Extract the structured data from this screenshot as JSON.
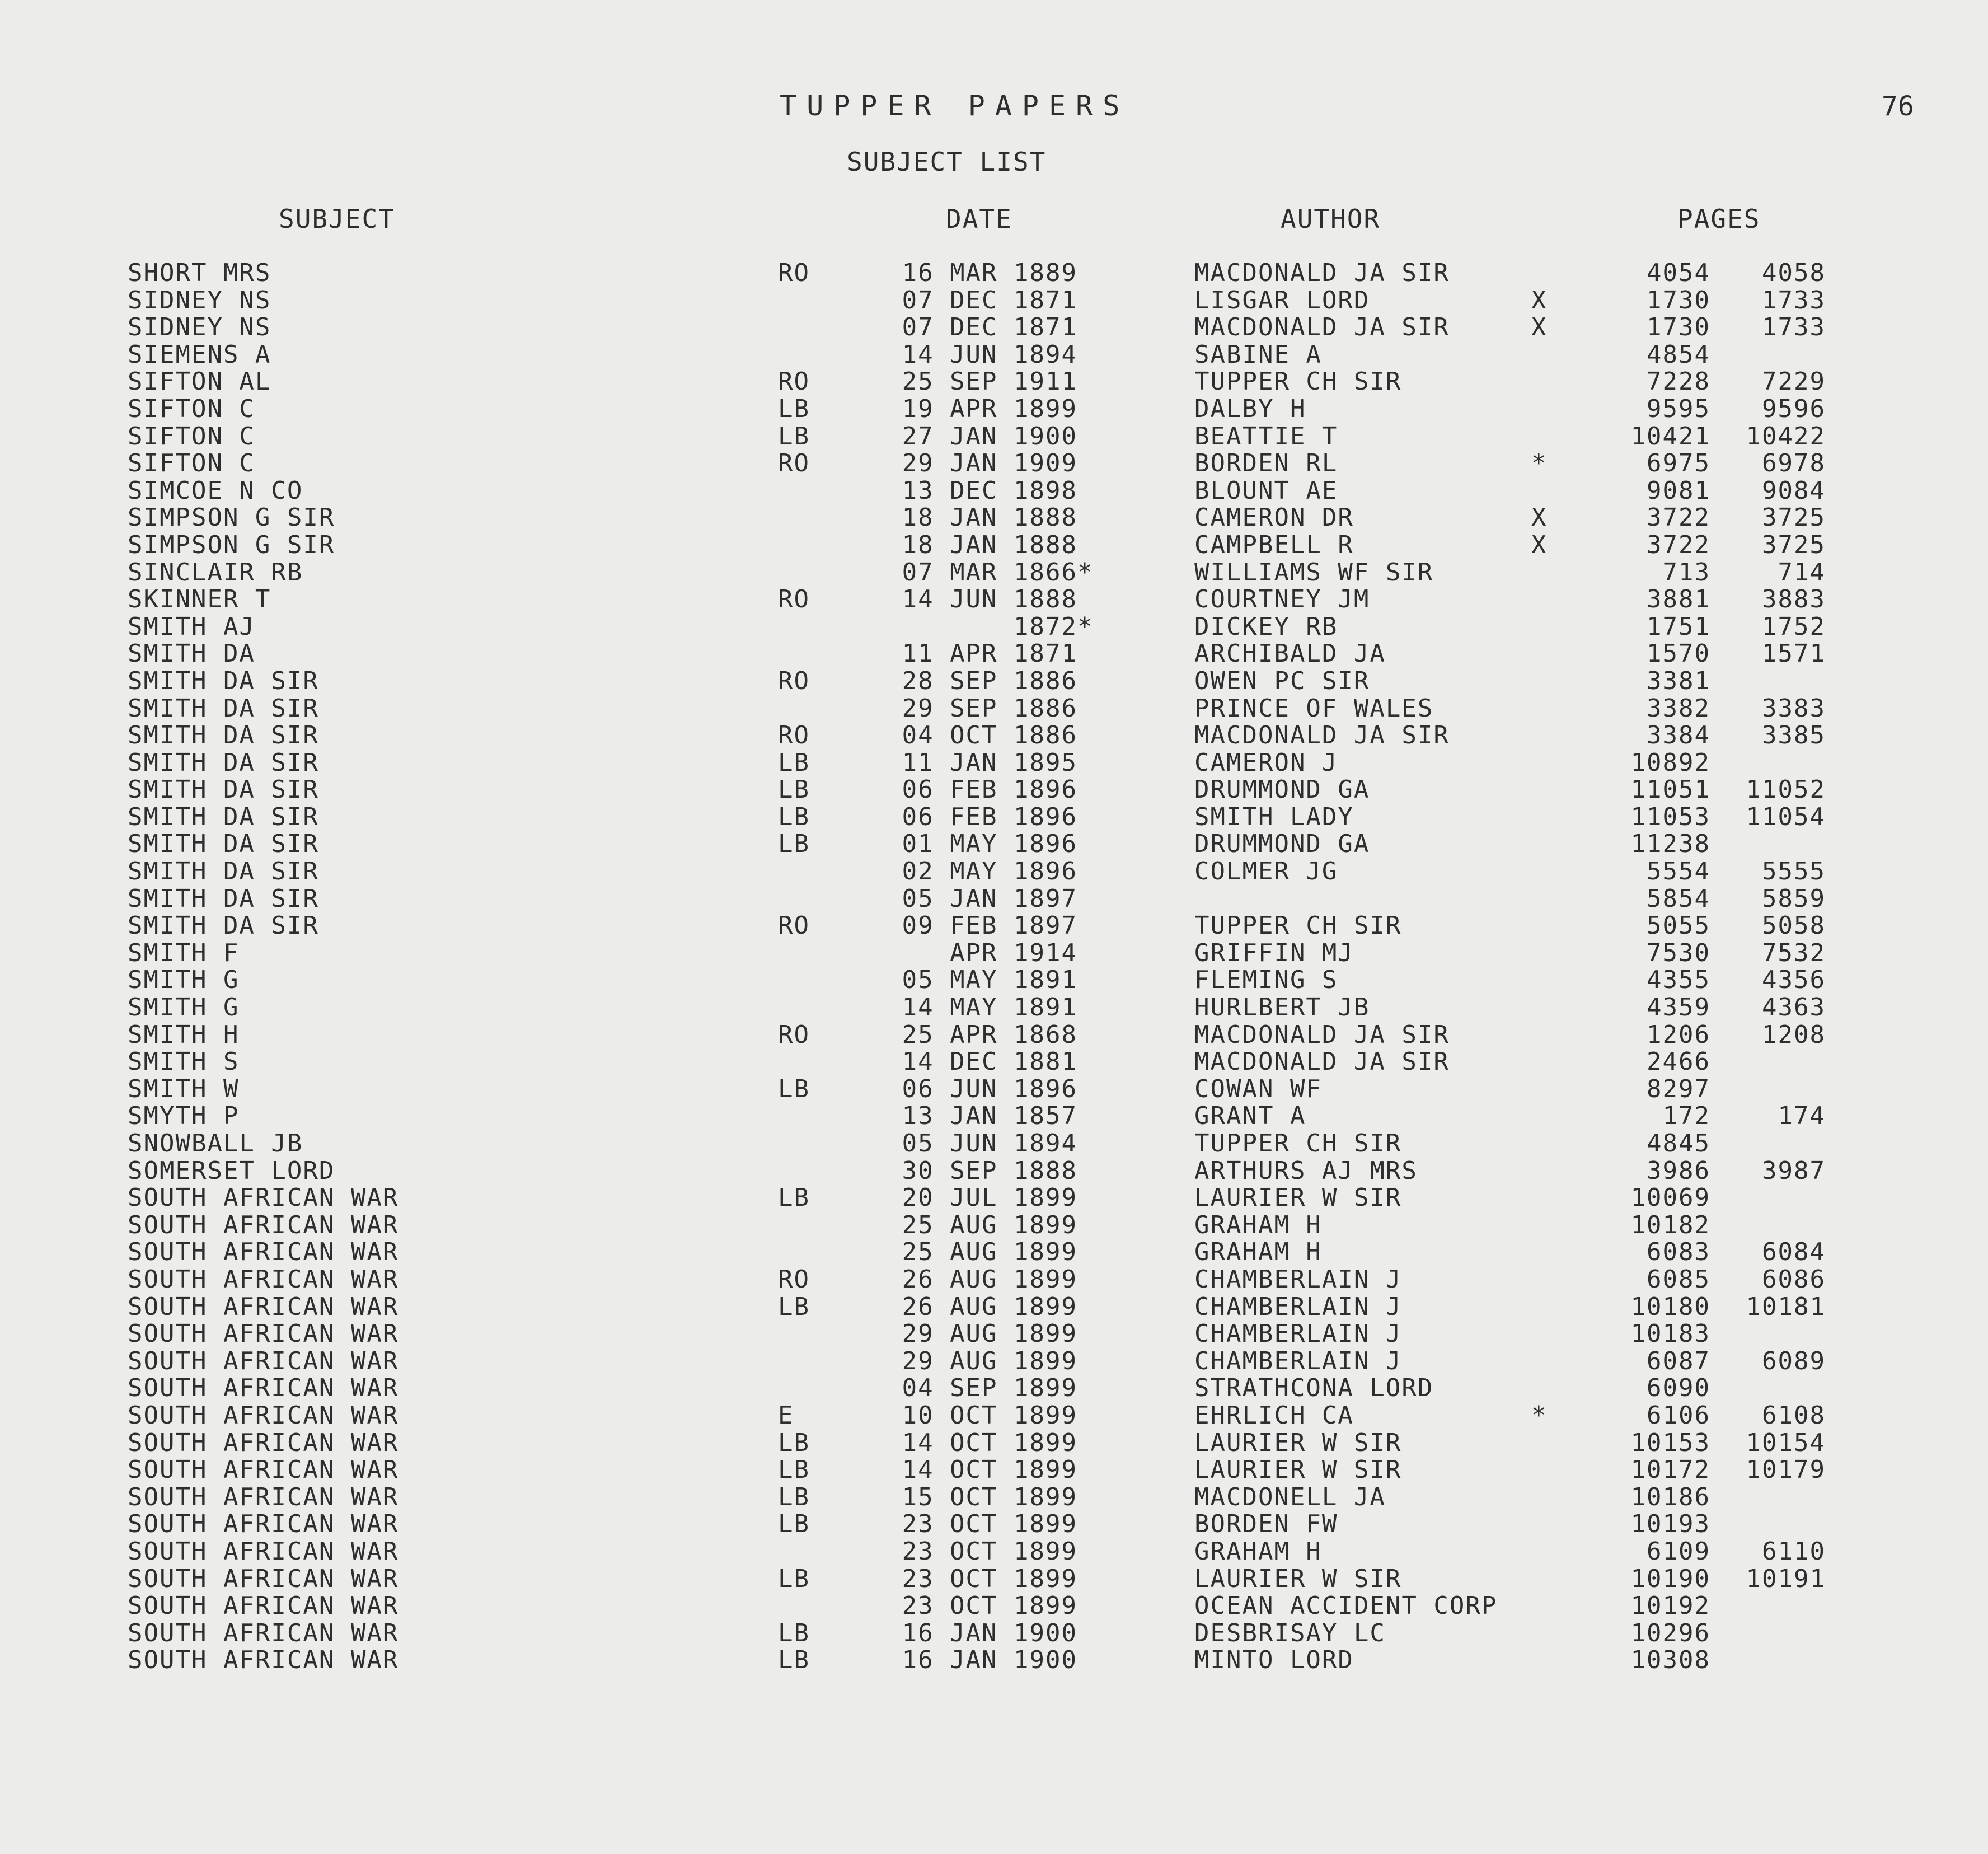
{
  "header": {
    "title": "TUPPER PAPERS",
    "page_number": "76",
    "subtitle": "SUBJECT LIST",
    "columns": {
      "subject": "SUBJECT",
      "date": "DATE",
      "author": "AUTHOR",
      "pages": "PAGES"
    }
  },
  "rows": [
    {
      "subject": "SHORT MRS",
      "code": "RO",
      "date": "16 MAR 1889",
      "ast": "",
      "author": "MACDONALD JA SIR",
      "mark": "",
      "p1": "4054",
      "p2": "4058"
    },
    {
      "subject": "SIDNEY NS",
      "code": "",
      "date": "07 DEC 1871",
      "ast": "",
      "author": "LISGAR LORD",
      "mark": "X",
      "p1": "1730",
      "p2": "1733"
    },
    {
      "subject": "SIDNEY NS",
      "code": "",
      "date": "07 DEC 1871",
      "ast": "",
      "author": "MACDONALD JA SIR",
      "mark": "X",
      "p1": "1730",
      "p2": "1733"
    },
    {
      "subject": "SIEMENS A",
      "code": "",
      "date": "14 JUN 1894",
      "ast": "",
      "author": "SABINE A",
      "mark": "",
      "p1": "4854",
      "p2": ""
    },
    {
      "subject": "SIFTON AL",
      "code": "RO",
      "date": "25 SEP 1911",
      "ast": "",
      "author": "TUPPER CH SIR",
      "mark": "",
      "p1": "7228",
      "p2": "7229"
    },
    {
      "subject": "SIFTON C",
      "code": "LB",
      "date": "19 APR 1899",
      "ast": "",
      "author": "DALBY H",
      "mark": "",
      "p1": "9595",
      "p2": "9596"
    },
    {
      "subject": "SIFTON C",
      "code": "LB",
      "date": "27 JAN 1900",
      "ast": "",
      "author": "BEATTIE T",
      "mark": "",
      "p1": "10421",
      "p2": "10422"
    },
    {
      "subject": "SIFTON C",
      "code": "RO",
      "date": "29 JAN 1909",
      "ast": "",
      "author": "BORDEN RL",
      "mark": "*",
      "p1": "6975",
      "p2": "6978"
    },
    {
      "subject": "SIMCOE N CO",
      "code": "",
      "date": "13 DEC 1898",
      "ast": "",
      "author": "BLOUNT AE",
      "mark": "",
      "p1": "9081",
      "p2": "9084"
    },
    {
      "subject": "SIMPSON G SIR",
      "code": "",
      "date": "18 JAN 1888",
      "ast": "",
      "author": "CAMERON DR",
      "mark": "X",
      "p1": "3722",
      "p2": "3725"
    },
    {
      "subject": "SIMPSON G SIR",
      "code": "",
      "date": "18 JAN 1888",
      "ast": "",
      "author": "CAMPBELL R",
      "mark": "X",
      "p1": "3722",
      "p2": "3725"
    },
    {
      "subject": "SINCLAIR RB",
      "code": "",
      "date": "07 MAR 1866",
      "ast": "*",
      "author": "WILLIAMS WF SIR",
      "mark": "",
      "p1": "713",
      "p2": "714"
    },
    {
      "subject": "SKINNER T",
      "code": "RO",
      "date": "14 JUN 1888",
      "ast": "",
      "author": "COURTNEY JM",
      "mark": "",
      "p1": "3881",
      "p2": "3883"
    },
    {
      "subject": "SMITH AJ",
      "code": "",
      "date": "1872",
      "ast": "*",
      "author": "DICKEY RB",
      "mark": "",
      "p1": "1751",
      "p2": "1752"
    },
    {
      "subject": "SMITH DA",
      "code": "",
      "date": "11 APR 1871",
      "ast": "",
      "author": "ARCHIBALD JA",
      "mark": "",
      "p1": "1570",
      "p2": "1571"
    },
    {
      "subject": "SMITH DA SIR",
      "code": "RO",
      "date": "28 SEP 1886",
      "ast": "",
      "author": "OWEN PC SIR",
      "mark": "",
      "p1": "3381",
      "p2": ""
    },
    {
      "subject": "SMITH DA SIR",
      "code": "",
      "date": "29 SEP 1886",
      "ast": "",
      "author": "PRINCE OF WALES",
      "mark": "",
      "p1": "3382",
      "p2": "3383"
    },
    {
      "subject": "SMITH DA SIR",
      "code": "RO",
      "date": "04 OCT 1886",
      "ast": "",
      "author": "MACDONALD JA SIR",
      "mark": "",
      "p1": "3384",
      "p2": "3385"
    },
    {
      "subject": "SMITH DA SIR",
      "code": "LB",
      "date": "11 JAN 1895",
      "ast": "",
      "author": "CAMERON J",
      "mark": "",
      "p1": "10892",
      "p2": ""
    },
    {
      "subject": "SMITH DA SIR",
      "code": "LB",
      "date": "06 FEB 1896",
      "ast": "",
      "author": "DRUMMOND GA",
      "mark": "",
      "p1": "11051",
      "p2": "11052"
    },
    {
      "subject": "SMITH DA SIR",
      "code": "LB",
      "date": "06 FEB 1896",
      "ast": "",
      "author": "SMITH LADY",
      "mark": "",
      "p1": "11053",
      "p2": "11054"
    },
    {
      "subject": "SMITH DA SIR",
      "code": "LB",
      "date": "01 MAY 1896",
      "ast": "",
      "author": "DRUMMOND GA",
      "mark": "",
      "p1": "11238",
      "p2": ""
    },
    {
      "subject": "SMITH DA SIR",
      "code": "",
      "date": "02 MAY 1896",
      "ast": "",
      "author": "COLMER JG",
      "mark": "",
      "p1": "5554",
      "p2": "5555"
    },
    {
      "subject": "SMITH DA SIR",
      "code": "",
      "date": "05 JAN 1897",
      "ast": "",
      "author": "",
      "mark": "",
      "p1": "5854",
      "p2": "5859"
    },
    {
      "subject": "SMITH DA SIR",
      "code": "RO",
      "date": "09 FEB 1897",
      "ast": "",
      "author": "TUPPER CH SIR",
      "mark": "",
      "p1": "5055",
      "p2": "5058"
    },
    {
      "subject": "SMITH F",
      "code": "",
      "date": "APR 1914",
      "ast": "",
      "author": "GRIFFIN MJ",
      "mark": "",
      "p1": "7530",
      "p2": "7532"
    },
    {
      "subject": "SMITH G",
      "code": "",
      "date": "05 MAY 1891",
      "ast": "",
      "author": "FLEMING S",
      "mark": "",
      "p1": "4355",
      "p2": "4356"
    },
    {
      "subject": "SMITH G",
      "code": "",
      "date": "14 MAY 1891",
      "ast": "",
      "author": "HURLBERT JB",
      "mark": "",
      "p1": "4359",
      "p2": "4363"
    },
    {
      "subject": "SMITH H",
      "code": "RO",
      "date": "25 APR 1868",
      "ast": "",
      "author": "MACDONALD JA SIR",
      "mark": "",
      "p1": "1206",
      "p2": "1208"
    },
    {
      "subject": "SMITH S",
      "code": "",
      "date": "14 DEC 1881",
      "ast": "",
      "author": "MACDONALD JA SIR",
      "mark": "",
      "p1": "2466",
      "p2": ""
    },
    {
      "subject": "SMITH W",
      "code": "LB",
      "date": "06 JUN 1896",
      "ast": "",
      "author": "COWAN WF",
      "mark": "",
      "p1": "8297",
      "p2": ""
    },
    {
      "subject": "SMYTH P",
      "code": "",
      "date": "13 JAN 1857",
      "ast": "",
      "author": "GRANT A",
      "mark": "",
      "p1": "172",
      "p2": "174"
    },
    {
      "subject": "SNOWBALL JB",
      "code": "",
      "date": "05 JUN 1894",
      "ast": "",
      "author": "TUPPER CH SIR",
      "mark": "",
      "p1": "4845",
      "p2": ""
    },
    {
      "subject": "SOMERSET LORD",
      "code": "",
      "date": "30 SEP 1888",
      "ast": "",
      "author": "ARTHURS AJ MRS",
      "mark": "",
      "p1": "3986",
      "p2": "3987"
    },
    {
      "subject": "SOUTH AFRICAN WAR",
      "code": "LB",
      "date": "20 JUL 1899",
      "ast": "",
      "author": "LAURIER W SIR",
      "mark": "",
      "p1": "10069",
      "p2": ""
    },
    {
      "subject": "SOUTH AFRICAN WAR",
      "code": "",
      "date": "25 AUG 1899",
      "ast": "",
      "author": "GRAHAM H",
      "mark": "",
      "p1": "10182",
      "p2": ""
    },
    {
      "subject": "SOUTH AFRICAN WAR",
      "code": "",
      "date": "25 AUG 1899",
      "ast": "",
      "author": "GRAHAM H",
      "mark": "",
      "p1": "6083",
      "p2": "6084"
    },
    {
      "subject": "SOUTH AFRICAN WAR",
      "code": "RO",
      "date": "26 AUG 1899",
      "ast": "",
      "author": "CHAMBERLAIN J",
      "mark": "",
      "p1": "6085",
      "p2": "6086"
    },
    {
      "subject": "SOUTH AFRICAN WAR",
      "code": "LB",
      "date": "26 AUG 1899",
      "ast": "",
      "author": "CHAMBERLAIN J",
      "mark": "",
      "p1": "10180",
      "p2": "10181"
    },
    {
      "subject": "SOUTH AFRICAN WAR",
      "code": "",
      "date": "29 AUG 1899",
      "ast": "",
      "author": "CHAMBERLAIN J",
      "mark": "",
      "p1": "10183",
      "p2": ""
    },
    {
      "subject": "SOUTH AFRICAN WAR",
      "code": "",
      "date": "29 AUG 1899",
      "ast": "",
      "author": "CHAMBERLAIN J",
      "mark": "",
      "p1": "6087",
      "p2": "6089"
    },
    {
      "subject": "SOUTH AFRICAN WAR",
      "code": "",
      "date": "04 SEP 1899",
      "ast": "",
      "author": "STRATHCONA LORD",
      "mark": "",
      "p1": "6090",
      "p2": ""
    },
    {
      "subject": "SOUTH AFRICAN WAR",
      "code": "E",
      "date": "10 OCT 1899",
      "ast": "",
      "author": "EHRLICH CA",
      "mark": "*",
      "p1": "6106",
      "p2": "6108"
    },
    {
      "subject": "SOUTH AFRICAN WAR",
      "code": "LB",
      "date": "14 OCT 1899",
      "ast": "",
      "author": "LAURIER W SIR",
      "mark": "",
      "p1": "10153",
      "p2": "10154"
    },
    {
      "subject": "SOUTH AFRICAN WAR",
      "code": "LB",
      "date": "14 OCT 1899",
      "ast": "",
      "author": "LAURIER W SIR",
      "mark": "",
      "p1": "10172",
      "p2": "10179"
    },
    {
      "subject": "SOUTH AFRICAN WAR",
      "code": "LB",
      "date": "15 OCT 1899",
      "ast": "",
      "author": "MACDONELL JA",
      "mark": "",
      "p1": "10186",
      "p2": ""
    },
    {
      "subject": "SOUTH AFRICAN WAR",
      "code": "LB",
      "date": "23 OCT 1899",
      "ast": "",
      "author": "BORDEN FW",
      "mark": "",
      "p1": "10193",
      "p2": ""
    },
    {
      "subject": "SOUTH AFRICAN WAR",
      "code": "",
      "date": "23 OCT 1899",
      "ast": "",
      "author": "GRAHAM H",
      "mark": "",
      "p1": "6109",
      "p2": "6110"
    },
    {
      "subject": "SOUTH AFRICAN WAR",
      "code": "LB",
      "date": "23 OCT 1899",
      "ast": "",
      "author": "LAURIER W SIR",
      "mark": "",
      "p1": "10190",
      "p2": "10191"
    },
    {
      "subject": "SOUTH AFRICAN WAR",
      "code": "",
      "date": "23 OCT 1899",
      "ast": "",
      "author": "OCEAN ACCIDENT CORP",
      "mark": "",
      "p1": "10192",
      "p2": ""
    },
    {
      "subject": "SOUTH AFRICAN WAR",
      "code": "LB",
      "date": "16 JAN 1900",
      "ast": "",
      "author": "DESBRISAY LC",
      "mark": "",
      "p1": "10296",
      "p2": ""
    },
    {
      "subject": "SOUTH AFRICAN WAR",
      "code": "LB",
      "date": "16 JAN 1900",
      "ast": "",
      "author": "MINTO LORD",
      "mark": "",
      "p1": "10308",
      "p2": ""
    }
  ]
}
